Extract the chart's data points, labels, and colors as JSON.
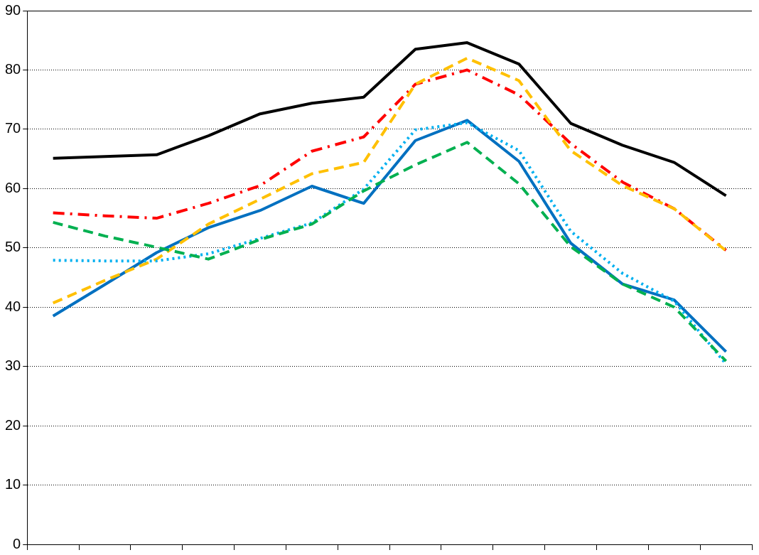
{
  "chart_data": {
    "type": "line",
    "categories": [
      null,
      null,
      null,
      null,
      null,
      null,
      null,
      null,
      null,
      null,
      null,
      null,
      null,
      null
    ],
    "ylim": [
      0,
      90
    ],
    "yticks": [
      0,
      10,
      20,
      30,
      40,
      50,
      60,
      70,
      80,
      90
    ],
    "grid": "y",
    "legend": false,
    "marker": "none",
    "tick_labels": "y",
    "series": [
      {
        "color": "#00b050",
        "line_style": "dashed",
        "values": [
          54.3,
          52.0,
          50.1,
          48.1,
          51.4,
          54.0,
          59.6,
          64.0,
          67.8,
          60.8,
          50.2,
          43.9,
          40.0,
          30.9
        ]
      },
      {
        "color": "#00b0f0",
        "line_style": "dotted",
        "values": [
          47.9,
          47.8,
          47.8,
          49.0,
          51.6,
          54.2,
          59.9,
          69.9,
          71.1,
          66.4,
          52.8,
          45.7,
          41.0,
          30.4
        ]
      },
      {
        "color": "#ffc000",
        "line_style": "dashed",
        "values": [
          40.7,
          44.5,
          48.1,
          54.0,
          58.2,
          62.5,
          64.4,
          77.6,
          82.0,
          78.2,
          66.4,
          60.5,
          56.6,
          49.5
        ]
      },
      {
        "color": "#ff0000",
        "line_style": "dashdot",
        "values": [
          55.9,
          55.4,
          55.0,
          57.5,
          60.5,
          66.3,
          68.7,
          77.6,
          80.0,
          75.8,
          67.6,
          61.1,
          56.6,
          49.6
        ]
      },
      {
        "color": "#000000",
        "line_style": "solid",
        "values": [
          65.1,
          65.4,
          65.7,
          68.9,
          72.6,
          74.4,
          75.4,
          83.5,
          84.6,
          81.0,
          71.0,
          67.3,
          64.4,
          58.8
        ]
      },
      {
        "color": "#0070c0",
        "line_style": "solid",
        "values": [
          38.5,
          43.8,
          49.2,
          53.4,
          56.3,
          60.4,
          57.5,
          68.1,
          71.5,
          64.6,
          50.8,
          43.9,
          41.2,
          32.5
        ]
      }
    ]
  }
}
